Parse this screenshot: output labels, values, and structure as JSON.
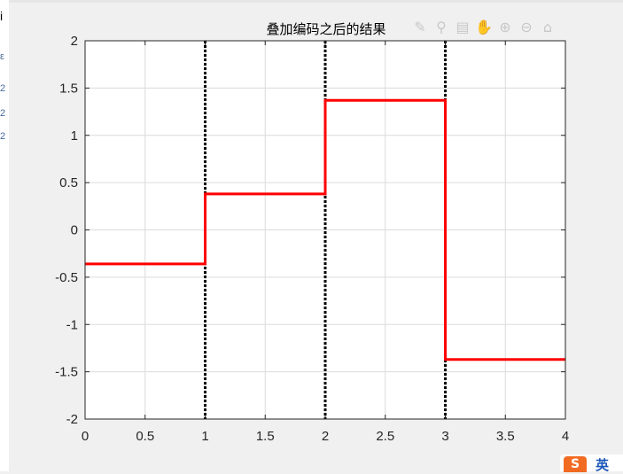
{
  "window": {
    "corner_label": "i"
  },
  "toolbar": {
    "icons": [
      "brush-icon",
      "data-tip-icon",
      "insert-legend-icon",
      "pan-hand-icon",
      "zoom-in-icon",
      "zoom-out-icon",
      "home-icon"
    ]
  },
  "ime": {
    "logo": "S",
    "label": "英"
  },
  "colors": {
    "series": "#ff0000",
    "dividers": "#000000",
    "grid": "#dcdcdc"
  },
  "chart_data": {
    "type": "line",
    "title": "叠加编码之后的结果",
    "xlabel": "",
    "ylabel": "",
    "xlim": [
      0,
      4
    ],
    "ylim": [
      -2,
      2
    ],
    "grid": true,
    "xticks": [
      0,
      0.5,
      1,
      1.5,
      2,
      2.5,
      3,
      3.5,
      4
    ],
    "xtick_labels": [
      "0",
      "0.5",
      "1",
      "1.5",
      "2",
      "2.5",
      "3",
      "3.5",
      "4"
    ],
    "yticks": [
      -2,
      -1.5,
      -1,
      -0.5,
      0,
      0.5,
      1,
      1.5,
      2
    ],
    "ytick_labels": [
      "-2",
      "-1.5",
      "-1",
      "-0.5",
      "0",
      "0.5",
      "1",
      "1.5",
      "2"
    ],
    "series": [
      {
        "style": "step",
        "color": "#ff0000",
        "x": [
          0,
          1,
          1,
          2,
          2,
          3,
          3,
          4
        ],
        "y": [
          -0.36,
          -0.36,
          0.38,
          0.38,
          1.37,
          1.37,
          -1.37,
          -1.37
        ]
      }
    ],
    "vlines": [
      1,
      2,
      3
    ],
    "vline_style": "dotted-black"
  }
}
